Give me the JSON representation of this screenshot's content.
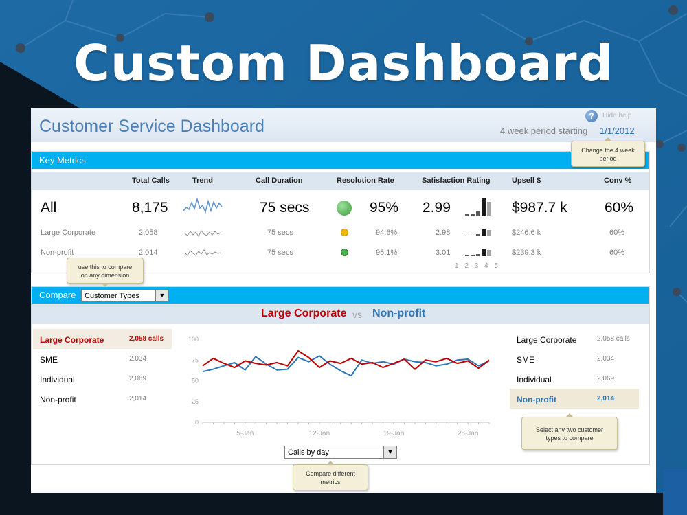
{
  "hero": {
    "title": "Custom Dashboard"
  },
  "colors": {
    "accent_bar": "#00b0f0",
    "title_blue": "#4a7fb8",
    "series_a": "#c00000",
    "series_b": "#2e75b6",
    "status_green": "#4caf50",
    "status_amber": "#f2b705"
  },
  "header": {
    "title": "Customer Service Dashboard",
    "period_label": "4 week period starting",
    "period_date": "1/1/2012",
    "help_icon": "question-icon",
    "help_label": "Hide help"
  },
  "key_metrics": {
    "section_label": "Key Metrics",
    "columns": [
      "Total Calls",
      "Trend",
      "Call Duration",
      "Resolution Rate",
      "Satisfaction Rating",
      "Upsell $",
      "Conv %"
    ],
    "rows": [
      {
        "name": "All",
        "total_calls": "8,175",
        "duration": "75 secs",
        "resolution_status": "green",
        "resolution": "95%",
        "satisfaction": "2.99",
        "rating_distribution": [
          0.05,
          0.1,
          0.3,
          1.0,
          0.75
        ],
        "upsell": "$987.7 k",
        "conv": "60%"
      },
      {
        "name": "Large Corporate",
        "total_calls": "2,058",
        "duration": "75 secs",
        "resolution_status": "amber",
        "resolution": "94.6%",
        "satisfaction": "2.98",
        "rating_distribution": [
          0.05,
          0.1,
          0.3,
          1.0,
          0.75
        ],
        "upsell": "$246.6 k",
        "conv": "60%"
      },
      {
        "name": "Non-profit",
        "total_calls": "2,014",
        "duration": "75 secs",
        "resolution_status": "green",
        "resolution": "95.1%",
        "satisfaction": "3.01",
        "rating_distribution": [
          0.05,
          0.1,
          0.3,
          1.0,
          0.75
        ],
        "upsell": "$239.3 k",
        "conv": "60%"
      }
    ],
    "rating_ticks": "1 2 3 4 5"
  },
  "compare": {
    "section_label": "Compare",
    "dimension_value": "Customer Types",
    "vs_a": "Large Corporate",
    "vs_mid": "vs",
    "vs_b": "Non-profit",
    "left_list": [
      {
        "name": "Large Corporate",
        "value": "2,058 calls"
      },
      {
        "name": "SME",
        "value": "2,034"
      },
      {
        "name": "Individual",
        "value": "2,069"
      },
      {
        "name": "Non-profit",
        "value": "2,014"
      }
    ],
    "right_list": [
      {
        "name": "Large Corporate",
        "value": "2,058 calls"
      },
      {
        "name": "SME",
        "value": "2,034"
      },
      {
        "name": "Individual",
        "value": "2,069"
      },
      {
        "name": "Non-profit",
        "value": "2,014"
      }
    ],
    "metric_value": "Calls by day"
  },
  "tips": {
    "period": [
      "Change the 4 week",
      "period"
    ],
    "dimension": [
      "use this to compare",
      "on any dimension"
    ],
    "types": [
      "Select any two customer",
      "types to compare"
    ],
    "metrics": [
      "Compare different",
      "metrics"
    ]
  },
  "chart_data": {
    "type": "line",
    "x": [
      "2012-01-01",
      "2012-01-02",
      "2012-01-03",
      "2012-01-04",
      "2012-01-05",
      "2012-01-06",
      "2012-01-07",
      "2012-01-08",
      "2012-01-09",
      "2012-01-10",
      "2012-01-11",
      "2012-01-12",
      "2012-01-13",
      "2012-01-14",
      "2012-01-15",
      "2012-01-16",
      "2012-01-17",
      "2012-01-18",
      "2012-01-19",
      "2012-01-20",
      "2012-01-21",
      "2012-01-22",
      "2012-01-23",
      "2012-01-24",
      "2012-01-25",
      "2012-01-26",
      "2012-01-27",
      "2012-01-28"
    ],
    "tick_labels": [
      "5-Jan",
      "12-Jan",
      "19-Jan",
      "26-Jan"
    ],
    "tick_dates": [
      "2012-01-05",
      "2012-01-12",
      "2012-01-19",
      "2012-01-26"
    ],
    "yticks": [
      0,
      25,
      50,
      75,
      100
    ],
    "ylim": [
      0,
      100
    ],
    "series": [
      {
        "name": "Large Corporate",
        "values": [
          68,
          77,
          71,
          66,
          74,
          71,
          69,
          72,
          68,
          86,
          78,
          66,
          74,
          71,
          77,
          70,
          72,
          66,
          71,
          76,
          64,
          75,
          73,
          77,
          71,
          74,
          65,
          75
        ]
      },
      {
        "name": "Non-profit",
        "values": [
          61,
          64,
          68,
          72,
          63,
          79,
          70,
          63,
          64,
          78,
          73,
          80,
          70,
          62,
          56,
          75,
          71,
          73,
          70,
          76,
          73,
          72,
          68,
          70,
          75,
          76,
          68,
          74
        ]
      }
    ],
    "xlabel": "",
    "ylabel": "",
    "grid": false
  }
}
